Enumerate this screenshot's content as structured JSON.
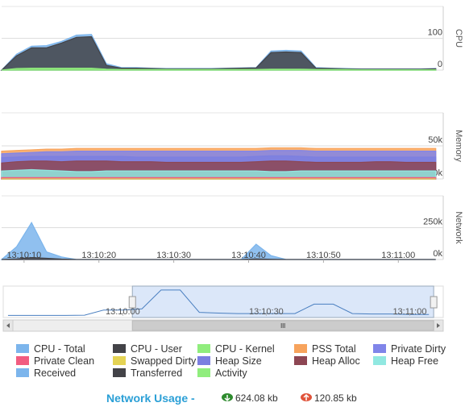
{
  "chart_data": [
    {
      "type": "area",
      "ylabel": "CPU",
      "x": [
        "13:10:07",
        "13:10:09",
        "13:10:11",
        "13:10:13",
        "13:10:15",
        "13:10:17",
        "13:10:19",
        "13:10:21",
        "13:10:23",
        "13:10:25",
        "13:10:27",
        "13:10:29",
        "13:10:31",
        "13:10:33",
        "13:10:35",
        "13:10:37",
        "13:10:39",
        "13:10:41",
        "13:10:43",
        "13:10:45",
        "13:10:47",
        "13:10:49",
        "13:10:51",
        "13:10:53",
        "13:10:55",
        "13:10:57",
        "13:10:59",
        "13:11:01",
        "13:11:03",
        "13:11:05"
      ],
      "xlim": [
        "13:10:07",
        "13:11:06"
      ],
      "ylim": [
        0,
        200
      ],
      "yticks": [
        0,
        100
      ],
      "grid": true,
      "series": [
        {
          "name": "CPU - Total",
          "color": "#7cb5ec",
          "values": [
            0,
            50,
            75,
            77,
            90,
            110,
            112,
            20,
            8,
            8,
            6,
            5,
            5,
            5,
            5,
            6,
            7,
            8,
            60,
            62,
            60,
            8,
            6,
            5,
            4,
            4,
            4,
            4,
            4,
            5
          ]
        },
        {
          "name": "CPU - User",
          "color": "#434348",
          "values": [
            0,
            45,
            70,
            70,
            85,
            103,
            105,
            15,
            6,
            6,
            5,
            4,
            4,
            4,
            4,
            5,
            6,
            7,
            55,
            57,
            55,
            6,
            5,
            4,
            3,
            3,
            3,
            3,
            3,
            4
          ]
        },
        {
          "name": "CPU - Kernel",
          "color": "#90ed7d",
          "values": [
            0,
            5,
            6,
            6,
            6,
            6,
            6,
            3,
            2,
            2,
            2,
            2,
            2,
            2,
            2,
            2,
            2,
            2,
            3,
            3,
            3,
            2,
            2,
            2,
            1,
            1,
            1,
            1,
            1,
            1
          ]
        }
      ]
    },
    {
      "type": "area",
      "ylabel": "Memory",
      "x": [
        "13:10:07",
        "13:10:09",
        "13:10:11",
        "13:10:13",
        "13:10:15",
        "13:10:17",
        "13:10:19",
        "13:10:21",
        "13:10:23",
        "13:10:25",
        "13:10:27",
        "13:10:29",
        "13:10:31",
        "13:10:33",
        "13:10:35",
        "13:10:37",
        "13:10:39",
        "13:10:41",
        "13:10:43",
        "13:10:45",
        "13:10:47",
        "13:10:49",
        "13:10:51",
        "13:10:53",
        "13:10:55",
        "13:10:57",
        "13:10:59",
        "13:11:01",
        "13:11:03",
        "13:11:05"
      ],
      "xlim": [
        "13:10:07",
        "13:11:06"
      ],
      "ylim": [
        0,
        100000
      ],
      "yticks": [
        {
          "value": 0,
          "label": "0k"
        },
        {
          "value": 50000,
          "label": "50k"
        }
      ],
      "grid": true,
      "series": [
        {
          "name": "PSS Total",
          "color": "#f7a35c",
          "values": [
            42000,
            43000,
            44000,
            45000,
            45000,
            46000,
            46000,
            46000,
            46000,
            46000,
            46000,
            46000,
            46000,
            46000,
            46000,
            46000,
            46000,
            46000,
            47000,
            47000,
            47000,
            46000,
            46000,
            46000,
            46000,
            46000,
            46000,
            46000,
            46000,
            46000
          ]
        },
        {
          "name": "Private Dirty",
          "color": "#8085e9",
          "values": [
            38000,
            39000,
            40000,
            41000,
            41000,
            42000,
            42000,
            42000,
            42000,
            42000,
            42000,
            42000,
            42000,
            42000,
            42000,
            42000,
            42000,
            42000,
            43000,
            43000,
            43000,
            42000,
            42000,
            42000,
            42000,
            42000,
            42000,
            42000,
            42000,
            42000
          ]
        },
        {
          "name": "Private Clean",
          "color": "#f15c80",
          "values": [
            2000,
            2000,
            2000,
            2000,
            2000,
            2000,
            2000,
            2000,
            2000,
            2000,
            2000,
            2000,
            2000,
            2000,
            2000,
            2000,
            2000,
            2000,
            2000,
            2000,
            2000,
            2000,
            2000,
            2000,
            2000,
            2000,
            2000,
            2000,
            2000,
            2000
          ]
        },
        {
          "name": "Swapped Dirty",
          "color": "#e4d354",
          "values": [
            0,
            0,
            0,
            0,
            0,
            0,
            0,
            0,
            0,
            0,
            0,
            0,
            0,
            0,
            0,
            0,
            0,
            0,
            0,
            0,
            0,
            0,
            0,
            0,
            0,
            0,
            0,
            0,
            0,
            0
          ]
        },
        {
          "name": "Heap Size",
          "color": "#7b7fe0",
          "values": [
            32000,
            33000,
            34000,
            34000,
            34000,
            34000,
            34000,
            34000,
            34000,
            33000,
            33000,
            33000,
            33000,
            33000,
            33000,
            33000,
            33000,
            34000,
            35000,
            35000,
            34000,
            33000,
            33000,
            33000,
            33000,
            33000,
            33000,
            33000,
            33000,
            33000
          ]
        },
        {
          "name": "Heap Alloc",
          "color": "#8d4653",
          "values": [
            24000,
            26000,
            27000,
            27000,
            26000,
            27000,
            27000,
            27000,
            26000,
            26000,
            26000,
            25000,
            25000,
            25000,
            25000,
            25000,
            25000,
            26000,
            27000,
            27000,
            26000,
            25000,
            25000,
            25000,
            25000,
            26000,
            26000,
            25000,
            25000,
            25000
          ]
        },
        {
          "name": "Heap Free",
          "color": "#91e8e1",
          "values": [
            12000,
            13000,
            14000,
            13000,
            12000,
            11000,
            11000,
            12000,
            12000,
            12000,
            12000,
            12000,
            12000,
            12000,
            12000,
            12000,
            12000,
            12000,
            11000,
            11000,
            12000,
            12000,
            12000,
            12000,
            12000,
            12000,
            12000,
            12000,
            12000,
            12000
          ]
        }
      ]
    },
    {
      "type": "area",
      "ylabel": "Network",
      "x": [
        "13:10:07",
        "13:10:09",
        "13:10:11",
        "13:10:13",
        "13:10:15",
        "13:10:17",
        "13:10:19",
        "13:10:21",
        "13:10:23",
        "13:10:25",
        "13:10:27",
        "13:10:29",
        "13:10:31",
        "13:10:33",
        "13:10:35",
        "13:10:37",
        "13:10:39",
        "13:10:41",
        "13:10:43",
        "13:10:45",
        "13:10:47",
        "13:10:49",
        "13:10:51",
        "13:10:53",
        "13:10:55",
        "13:10:57",
        "13:10:59",
        "13:11:01",
        "13:11:03",
        "13:11:05"
      ],
      "xlim": [
        "13:10:07",
        "13:11:06"
      ],
      "ylim": [
        0,
        500000
      ],
      "xticks": [
        "13:10:10",
        "13:10:20",
        "13:10:30",
        "13:10:40",
        "13:10:50",
        "13:11:00"
      ],
      "yticks": [
        {
          "value": 0,
          "label": "0k"
        },
        {
          "value": 250000,
          "label": "250k"
        }
      ],
      "grid": true,
      "series": [
        {
          "name": "Received",
          "color": "#7cb5ec",
          "values": [
            0,
            100000,
            290000,
            60000,
            20000,
            0,
            0,
            0,
            0,
            0,
            0,
            0,
            0,
            0,
            0,
            0,
            0,
            120000,
            30000,
            0,
            0,
            0,
            0,
            0,
            0,
            0,
            0,
            0,
            0,
            0
          ]
        },
        {
          "name": "Transferred",
          "color": "#434348",
          "values": [
            0,
            5000,
            15000,
            10000,
            3000,
            0,
            0,
            0,
            0,
            0,
            0,
            0,
            0,
            0,
            0,
            0,
            0,
            5000,
            2000,
            0,
            0,
            0,
            0,
            0,
            0,
            0,
            0,
            0,
            0,
            0
          ]
        },
        {
          "name": "Activity",
          "color": "#90ed7d",
          "values": [
            null,
            null,
            null,
            null,
            null,
            null,
            null,
            null,
            null,
            null,
            null,
            null,
            null,
            null,
            null,
            null,
            null,
            null,
            null,
            null,
            null,
            null,
            null,
            null,
            null,
            null,
            null,
            null,
            null,
            null
          ]
        }
      ]
    },
    {
      "type": "navigator",
      "x": [
        "13:09:36",
        "13:09:40",
        "13:09:44",
        "13:09:48",
        "13:09:52",
        "13:09:56",
        "13:10:00",
        "13:10:04",
        "13:10:08",
        "13:10:12",
        "13:10:16",
        "13:10:20",
        "13:10:24",
        "13:10:28",
        "13:10:32",
        "13:10:36",
        "13:10:40",
        "13:10:44",
        "13:10:48",
        "13:10:52",
        "13:10:56",
        "13:11:00",
        "13:11:04"
      ],
      "xlim": [
        "13:09:35",
        "13:11:07"
      ],
      "ylim": [
        0,
        120
      ],
      "xticks": [
        "13:10:00",
        "13:10:30",
        "13:11:00"
      ],
      "selection": [
        "13:10:02",
        "13:11:05"
      ],
      "color": "#4a7fc0",
      "values": [
        2,
        2,
        2,
        2,
        3,
        25,
        25,
        30,
        110,
        110,
        15,
        12,
        10,
        10,
        10,
        10,
        50,
        50,
        10,
        8,
        8,
        6,
        6
      ]
    }
  ],
  "network_usage": {
    "label": "Network Usage -",
    "received": "624.08 kb",
    "transferred": "120.85 kb"
  }
}
